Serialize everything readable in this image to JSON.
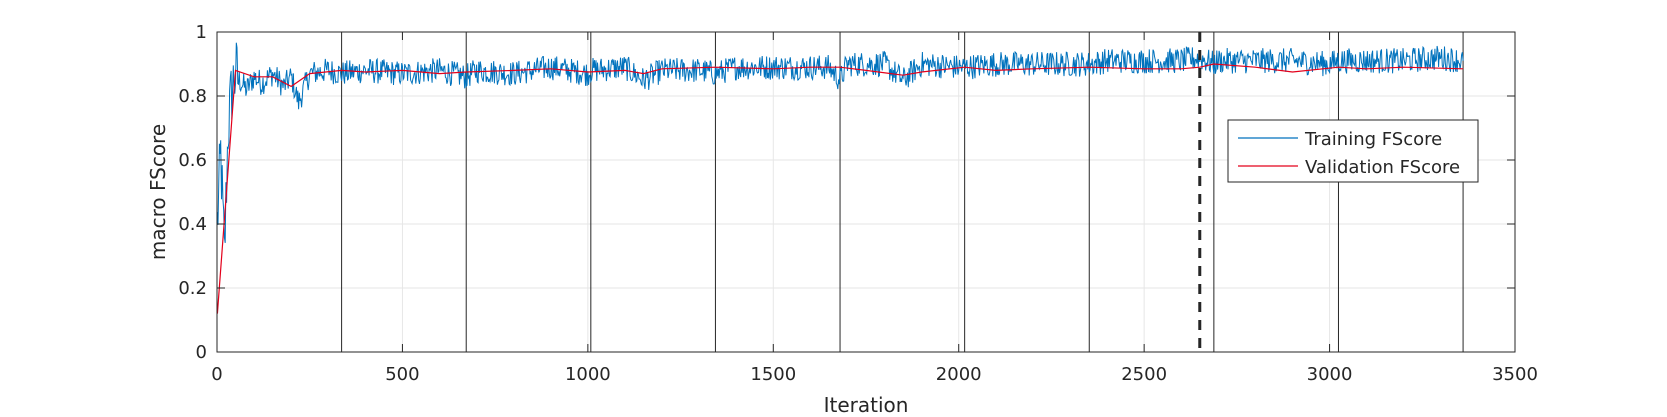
{
  "chart_data": {
    "type": "line",
    "xlabel": "Iteration",
    "ylabel": "macro FScore",
    "xlim": [
      0,
      3500
    ],
    "ylim": [
      0,
      1
    ],
    "xticks": [
      0,
      500,
      1000,
      1500,
      2000,
      2500,
      3000,
      3500
    ],
    "yticks": [
      0,
      0.2,
      0.4,
      0.6,
      0.8,
      1
    ],
    "grid": true,
    "legend_position": "right",
    "epoch_lines_x": [
      336,
      672,
      1008,
      1344,
      1680,
      2016,
      2352,
      2688,
      3024,
      3360
    ],
    "stop_line_x": 2650,
    "series": [
      {
        "name": "Training FScore",
        "color": "#0072BD",
        "x": [
          1,
          10,
          20,
          30,
          40,
          50,
          60,
          80,
          100,
          120,
          150,
          180,
          200,
          220,
          250,
          300,
          336,
          400,
          500,
          600,
          672,
          700,
          800,
          900,
          1000,
          1008,
          1100,
          1150,
          1200,
          1300,
          1344,
          1400,
          1500,
          1600,
          1650,
          1680,
          1700,
          1800,
          1850,
          1900,
          2000,
          2016,
          2100,
          2200,
          2300,
          2352,
          2400,
          2500,
          2600,
          2650,
          2688,
          2700,
          2800,
          2900,
          3000,
          3024,
          3100,
          3200,
          3300,
          3360
        ],
        "values": [
          0.4,
          0.62,
          0.3,
          0.7,
          0.82,
          0.87,
          0.85,
          0.82,
          0.86,
          0.84,
          0.87,
          0.83,
          0.86,
          0.78,
          0.87,
          0.88,
          0.87,
          0.88,
          0.87,
          0.88,
          0.86,
          0.88,
          0.87,
          0.89,
          0.87,
          0.88,
          0.89,
          0.85,
          0.88,
          0.88,
          0.87,
          0.89,
          0.89,
          0.89,
          0.89,
          0.85,
          0.9,
          0.9,
          0.85,
          0.9,
          0.89,
          0.89,
          0.9,
          0.9,
          0.9,
          0.9,
          0.91,
          0.91,
          0.91,
          0.92,
          0.9,
          0.91,
          0.91,
          0.91,
          0.9,
          0.91,
          0.91,
          0.91,
          0.92,
          0.91
        ]
      },
      {
        "name": "Validation FScore",
        "color": "#E3001B",
        "x": [
          1,
          50,
          100,
          150,
          200,
          250,
          336,
          400,
          500,
          600,
          672,
          800,
          900,
          1000,
          1100,
          1150,
          1200,
          1344,
          1500,
          1600,
          1680,
          1750,
          1850,
          1900,
          2016,
          2100,
          2200,
          2352,
          2500,
          2600,
          2650,
          2688,
          2800,
          2900,
          3024,
          3100,
          3200,
          3360
        ],
        "values": [
          0.12,
          0.88,
          0.86,
          0.86,
          0.83,
          0.87,
          0.88,
          0.875,
          0.88,
          0.87,
          0.875,
          0.88,
          0.885,
          0.875,
          0.88,
          0.87,
          0.885,
          0.89,
          0.885,
          0.89,
          0.89,
          0.88,
          0.865,
          0.875,
          0.89,
          0.88,
          0.885,
          0.89,
          0.885,
          0.885,
          0.89,
          0.9,
          0.89,
          0.875,
          0.89,
          0.885,
          0.89,
          0.885
        ]
      }
    ]
  }
}
